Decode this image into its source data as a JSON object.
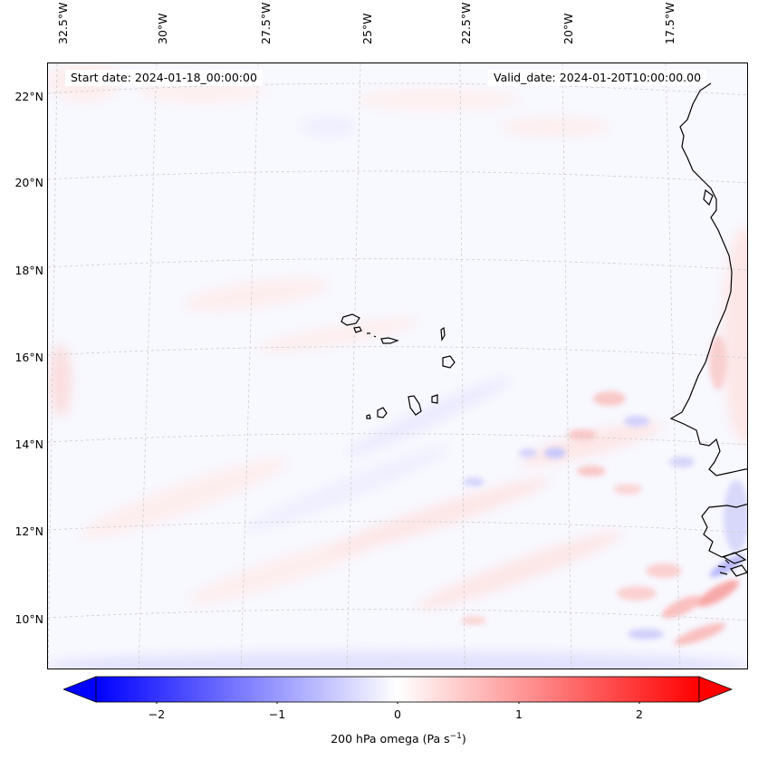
{
  "header": {
    "start_date": "Start date: 2024-01-18_00:00:00",
    "valid_date": "Valid_date: 2024-01-20T10:00:00.00"
  },
  "axes": {
    "longitude_labels": [
      "32.5°W",
      "30°W",
      "27.5°W",
      "25°W",
      "22.5°W",
      "20°W",
      "17.5°W"
    ],
    "latitude_labels": [
      "22°N",
      "20°N",
      "18°N",
      "16°N",
      "14°N",
      "12°N",
      "10°N"
    ]
  },
  "colorbar": {
    "ticks": [
      "−2",
      "−1",
      "0",
      "1",
      "2"
    ],
    "label_main": "200 hPa omega (Pa s",
    "label_exp": "−1",
    "label_end": ")",
    "range": [
      -2.5,
      2.5
    ],
    "extend": "both",
    "color_low": "#0000ff",
    "color_mid": "#ffffff",
    "color_high": "#ff0000"
  },
  "map": {
    "variable": "200 hPa omega",
    "units": "Pa s-1",
    "islands": "Cape Verde",
    "background_color": "#f8f8ff",
    "gridline_color": "#cccccc",
    "coast_color": "#000000"
  }
}
